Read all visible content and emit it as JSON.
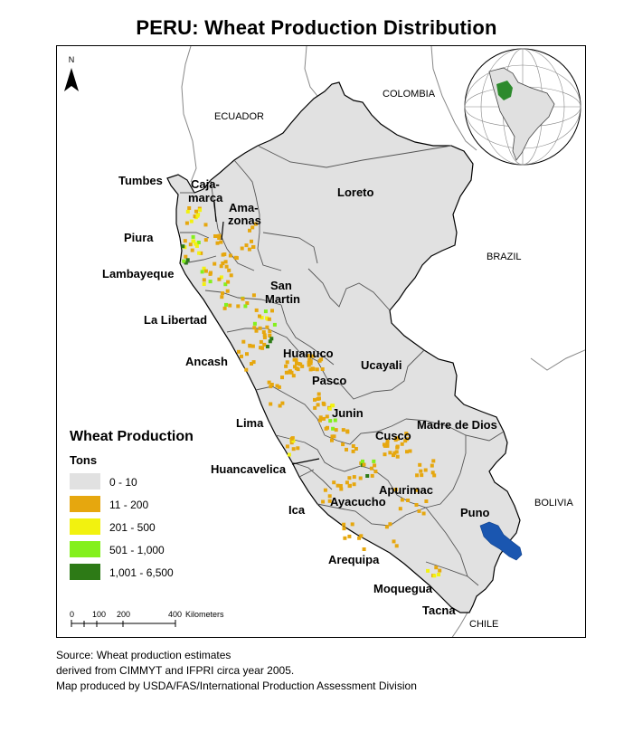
{
  "title": "PERU: Wheat Production Distribution",
  "north_label": "N",
  "countries": [
    "ECUADOR",
    "COLOMBIA",
    "BRAZIL",
    "BOLIVIA",
    "CHILE"
  ],
  "regions": {
    "tumbes": "Tumbes",
    "cajamarca_1": "Caja-",
    "cajamarca_2": "marca",
    "amazonas_1": "Ama-",
    "amazonas_2": "zonas",
    "piura": "Piura",
    "loreto": "Loreto",
    "lambayeque": "Lambayeque",
    "san_martin_1": "San",
    "san_martin_2": "Martin",
    "la_libertad": "La Libertad",
    "huanuco": "Huanuco",
    "ancash": "Ancash",
    "pasco": "Pasco",
    "ucayali": "Ucayali",
    "junin": "Junin",
    "lima": "Lima",
    "madre_de_dios": "Madre de Dios",
    "cusco": "Cusco",
    "huancavelica": "Huancavelica",
    "apurimac": "Apurimac",
    "ica": "Ica",
    "ayacucho": "Ayacucho",
    "puno": "Puno",
    "arequipa": "Arequipa",
    "moquegua": "Moquegua",
    "tacna": "Tacna"
  },
  "legend": {
    "title": "Wheat Production",
    "units": "Tons",
    "items": [
      {
        "label": "0 - 10",
        "color": "#e1e1e1"
      },
      {
        "label": "11 - 200",
        "color": "#e6a70e"
      },
      {
        "label": "201 - 500",
        "color": "#f2f20f"
      },
      {
        "label": "501 - 1,000",
        "color": "#84f01c"
      },
      {
        "label": "1,001 - 6,500",
        "color": "#2d7a16"
      }
    ]
  },
  "scale_bar": {
    "ticks": [
      "0",
      "100",
      "200",
      "400"
    ],
    "unit": "Kilometers"
  },
  "colors": {
    "peru_fill": "#e1e1e1",
    "lake": "#1a56b0",
    "border": "#000000",
    "neighbor_border": "#888888"
  },
  "source": [
    "Source: Wheat production estimates",
    "derived from CIMMYT and IFPRI circa year 2005.",
    "Map produced by USDA/FAS/International Production Assessment Division"
  ]
}
